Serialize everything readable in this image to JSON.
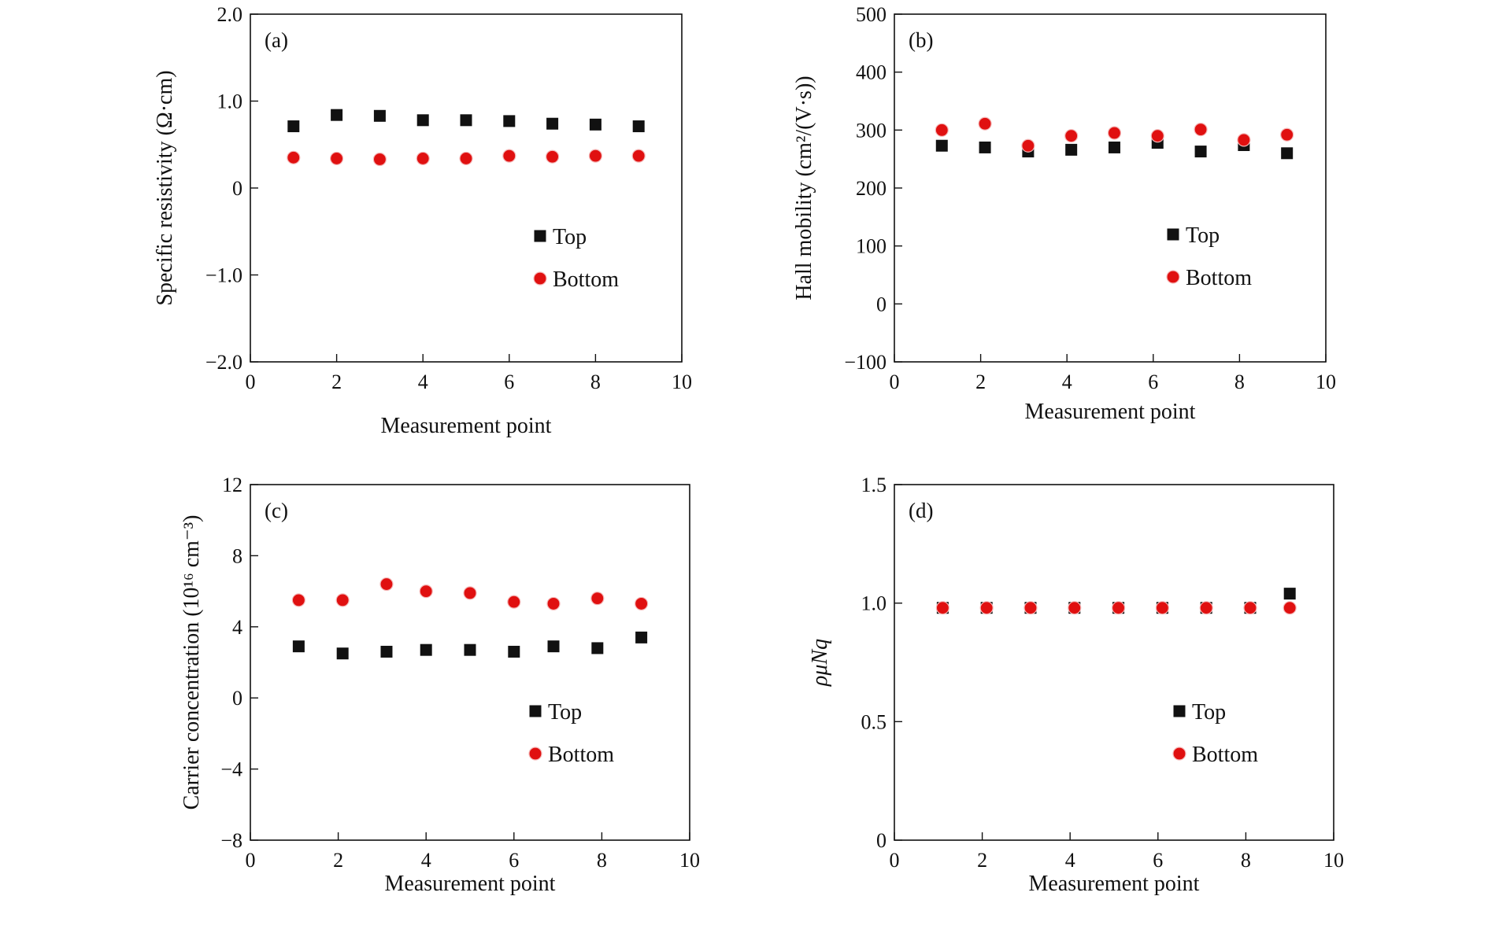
{
  "colors": {
    "top": "#111111",
    "bottom": "#e01010",
    "axis": "#111111"
  },
  "chart_data": [
    {
      "type": "scatter",
      "panel_label": "(a)",
      "xlabel": "Measurement point",
      "ylabel": "Specific resistivity (Ω·cm)",
      "xlim": [
        0,
        10
      ],
      "ylim": [
        -2.0,
        2.0
      ],
      "xticks": [
        "0",
        "2",
        "4",
        "6",
        "8",
        "10"
      ],
      "yticks": [
        "−2.0",
        "−1.0",
        "0",
        "1.0",
        "2.0"
      ],
      "ytick_values": [
        -2,
        -1,
        0,
        1,
        2
      ],
      "legend": "right-middle",
      "series": [
        {
          "name": "Top",
          "marker": "square",
          "x": [
            1,
            2,
            3,
            4,
            5,
            6,
            7,
            8,
            9
          ],
          "values": [
            0.71,
            0.84,
            0.83,
            0.78,
            0.78,
            0.77,
            0.74,
            0.73,
            0.71
          ]
        },
        {
          "name": "Bottom",
          "marker": "circle",
          "x": [
            1,
            2,
            3,
            4,
            5,
            6,
            7,
            8,
            9
          ],
          "values": [
            0.35,
            0.34,
            0.33,
            0.34,
            0.34,
            0.37,
            0.36,
            0.37,
            0.37
          ]
        }
      ]
    },
    {
      "type": "scatter",
      "panel_label": "(b)",
      "xlabel": "Measurement point",
      "ylabel": "Hall mobility (cm²/(V·s))",
      "xlim": [
        0,
        10
      ],
      "ylim": [
        -100,
        500
      ],
      "xticks": [
        "0",
        "2",
        "4",
        "6",
        "8",
        "10"
      ],
      "yticks": [
        "−100",
        "0",
        "100",
        "200",
        "300",
        "400",
        "500"
      ],
      "ytick_values": [
        -100,
        0,
        100,
        200,
        300,
        400,
        500
      ],
      "legend": "right-middle",
      "series": [
        {
          "name": "Top",
          "marker": "square",
          "x": [
            1.1,
            2.1,
            3.1,
            4.1,
            5.1,
            6.1,
            7.1,
            8.1,
            9.1
          ],
          "values": [
            273,
            270,
            263,
            266,
            270,
            278,
            263,
            274,
            260
          ]
        },
        {
          "name": "Bottom",
          "marker": "circle",
          "x": [
            1.1,
            2.1,
            3.1,
            4.1,
            5.1,
            6.1,
            7.1,
            8.1,
            9.1
          ],
          "values": [
            300,
            311,
            273,
            290,
            295,
            290,
            301,
            283,
            292
          ]
        }
      ]
    },
    {
      "type": "scatter",
      "panel_label": "(c)",
      "xlabel": "Measurement point",
      "ylabel": "Carrier concentration (10¹⁶ cm⁻³)",
      "xlim": [
        0,
        10
      ],
      "ylim": [
        -8,
        12
      ],
      "xticks": [
        "0",
        "2",
        "4",
        "6",
        "8",
        "10"
      ],
      "yticks": [
        "−8",
        "−4",
        "0",
        "4",
        "8",
        "12"
      ],
      "ytick_values": [
        -8,
        -4,
        0,
        4,
        8,
        12
      ],
      "legend": "right-lower",
      "series": [
        {
          "name": "Top",
          "marker": "square",
          "x": [
            1.1,
            2.1,
            3.1,
            4.0,
            5.0,
            6.0,
            6.9,
            7.9,
            8.9
          ],
          "values": [
            2.9,
            2.5,
            2.6,
            2.7,
            2.7,
            2.6,
            2.9,
            2.8,
            3.4
          ]
        },
        {
          "name": "Bottom",
          "marker": "circle",
          "x": [
            1.1,
            2.1,
            3.1,
            4.0,
            5.0,
            6.0,
            6.9,
            7.9,
            8.9
          ],
          "values": [
            5.5,
            5.5,
            6.4,
            6.0,
            5.9,
            5.4,
            5.3,
            5.6,
            5.3
          ]
        }
      ]
    },
    {
      "type": "scatter",
      "panel_label": "(d)",
      "xlabel": "Measurement point",
      "ylabel": "ρμNq",
      "xlim": [
        0,
        10
      ],
      "ylim": [
        0,
        1.5
      ],
      "xticks": [
        "0",
        "2",
        "4",
        "6",
        "8",
        "10"
      ],
      "yticks": [
        "0",
        "0.5",
        "1.0",
        "1.5"
      ],
      "ytick_values": [
        0,
        0.5,
        1.0,
        1.5
      ],
      "legend": "right-lower",
      "series": [
        {
          "name": "Top",
          "marker": "square",
          "x": [
            1.1,
            2.1,
            3.1,
            4.1,
            5.1,
            6.1,
            7.1,
            8.1,
            9.0
          ],
          "values": [
            0.98,
            0.98,
            0.98,
            0.98,
            0.98,
            0.98,
            0.98,
            0.98,
            1.04
          ]
        },
        {
          "name": "Bottom",
          "marker": "circle",
          "x": [
            1.1,
            2.1,
            3.1,
            4.1,
            5.1,
            6.1,
            7.1,
            8.1,
            9.0
          ],
          "values": [
            0.98,
            0.98,
            0.98,
            0.98,
            0.98,
            0.98,
            0.98,
            0.98,
            0.98
          ]
        }
      ]
    }
  ]
}
